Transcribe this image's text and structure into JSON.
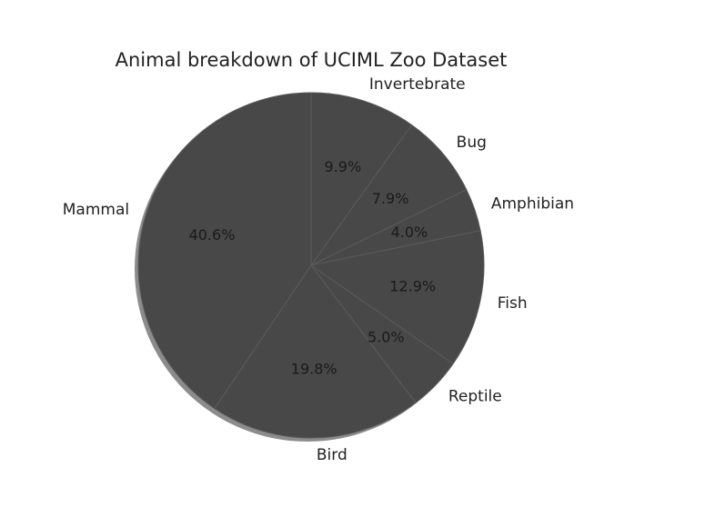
{
  "chart_data": {
    "type": "pie",
    "title": "Animal breakdown of UCIML Zoo Dataset",
    "slices": [
      {
        "label": "Invertebrate",
        "value": 9.9,
        "pct_label": "9.9%"
      },
      {
        "label": "Bug",
        "value": 7.9,
        "pct_label": "7.9%"
      },
      {
        "label": "Amphibian",
        "value": 4.0,
        "pct_label": "4.0%"
      },
      {
        "label": "Fish",
        "value": 12.9,
        "pct_label": "12.9%"
      },
      {
        "label": "Reptile",
        "value": 5.0,
        "pct_label": "5.0%"
      },
      {
        "label": "Bird",
        "value": 19.8,
        "pct_label": "19.8%"
      },
      {
        "label": "Mammal",
        "value": 40.6,
        "pct_label": "40.6%"
      }
    ],
    "start_angle_deg": 90,
    "direction": "clockwise",
    "shadow": true,
    "slice_color": "#484848",
    "edge_color": "#5a5a5a",
    "shadow_color": "#8c8c8c"
  }
}
